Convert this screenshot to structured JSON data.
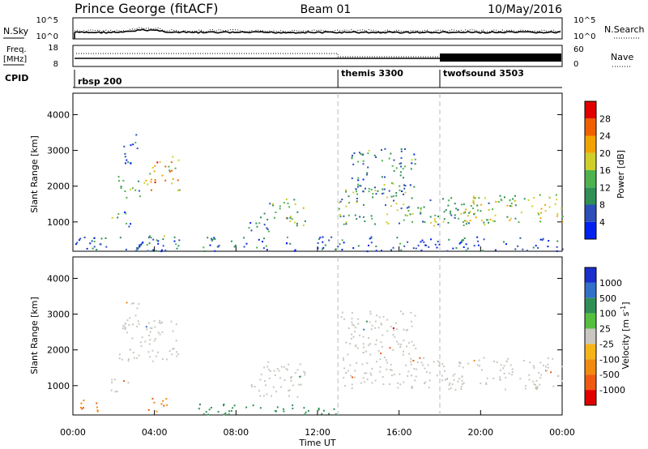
{
  "header": {
    "station": "Prince George (fitACF)",
    "beam": "Beam 01",
    "date": "10/May/2016"
  },
  "left_labels": {
    "nsky": "N.Sky",
    "freq_line1": "Freq.",
    "freq_line2": "[MHz]",
    "cpid": "CPID"
  },
  "right_labels": {
    "nsearch": "N.Search",
    "nave": "Nave"
  },
  "panel_ticks": {
    "noise_left": [
      "10^5",
      "10^0"
    ],
    "noise_right": [
      "10^5",
      "10^0"
    ],
    "freq_left": [
      "18",
      "8"
    ],
    "freq_right": [
      "60",
      "0"
    ]
  },
  "cpid_modes": [
    {
      "label": "rbsp 200",
      "start_hour": 0
    },
    {
      "label": "themis 3300",
      "start_hour": 13
    },
    {
      "label": "twofsound 3503",
      "start_hour": 18
    }
  ],
  "colors": {
    "power_scale": [
      "#0022ee",
      "#2f4fb8",
      "#2f8f55",
      "#4fb24f",
      "#cfcf2a",
      "#f2a300",
      "#f06000",
      "#e00000"
    ],
    "velocity_scale": [
      "#1a2fcc",
      "#3370c8",
      "#2f8f55",
      "#55c040",
      "#c8c8c0",
      "#f5b51a",
      "#f08a10",
      "#f05a10",
      "#e00000"
    ],
    "line": "#000000",
    "dash": "#bbbbbb"
  },
  "chart_data": [
    {
      "type": "heatmap",
      "title": "",
      "xlabel": "Time UT",
      "ylabel": "Slant Range [km]",
      "colorbar_label": "Power [dB]",
      "x_ticks": [
        "00:00",
        "04:00",
        "08:00",
        "12:00",
        "16:00",
        "20:00",
        "00:00"
      ],
      "y_ticks": [
        "1000",
        "2000",
        "3000",
        "4000"
      ],
      "colorbar_ticks": [
        "4",
        "8",
        "12",
        "16",
        "20",
        "24",
        "28"
      ],
      "xlim": [
        0,
        24
      ],
      "ylim": [
        180,
        4600
      ],
      "clim": [
        0,
        32
      ],
      "regions": [
        {
          "t": [
            2.2,
            3.6
          ],
          "r": [
            1700,
            2300
          ],
          "level": 14
        },
        {
          "t": [
            3.6,
            5.2
          ],
          "r": [
            1900,
            2850
          ],
          "level": 22
        },
        {
          "t": [
            2.4,
            3.2
          ],
          "r": [
            2600,
            3500
          ],
          "level": 8
        },
        {
          "t": [
            1.8,
            2.8
          ],
          "r": [
            850,
            1300
          ],
          "level": 10
        },
        {
          "t": [
            3.6,
            4.6
          ],
          "r": [
            300,
            700
          ],
          "level": 12
        },
        {
          "t": [
            8.6,
            9.6
          ],
          "r": [
            700,
            1400
          ],
          "level": 9
        },
        {
          "t": [
            9.6,
            11.4
          ],
          "r": [
            900,
            1700
          ],
          "level": 14
        },
        {
          "t": [
            13.0,
            16.5
          ],
          "r": [
            950,
            2000
          ],
          "level": 12
        },
        {
          "t": [
            13.6,
            16.8
          ],
          "r": [
            1800,
            3100
          ],
          "level": 10
        },
        {
          "t": [
            16.5,
            21.0
          ],
          "r": [
            900,
            1700
          ],
          "level": 13
        },
        {
          "t": [
            19.0,
            24.0
          ],
          "r": [
            1000,
            1800
          ],
          "level": 16
        },
        {
          "t": [
            0.0,
            24.0
          ],
          "r": [
            200,
            600
          ],
          "level": 6
        }
      ]
    },
    {
      "type": "heatmap",
      "title": "",
      "xlabel": "Time UT",
      "ylabel": "Slant Range [km]",
      "colorbar_label": "Velocity [m s^-1]",
      "x_ticks": [
        "00:00",
        "04:00",
        "08:00",
        "12:00",
        "16:00",
        "20:00",
        "00:00"
      ],
      "y_ticks": [
        "1000",
        "2000",
        "3000",
        "4000"
      ],
      "colorbar_ticks": [
        "1000",
        "500",
        "100",
        "25",
        "-25",
        "-100",
        "-500",
        "-1000"
      ],
      "xlim": [
        0,
        24
      ],
      "ylim": [
        180,
        4600
      ],
      "regions": [
        {
          "t": [
            2.2,
            5.2
          ],
          "r": [
            1700,
            2850
          ],
          "velocity": 0
        },
        {
          "t": [
            2.4,
            3.2
          ],
          "r": [
            2600,
            3500
          ],
          "velocity": 0
        },
        {
          "t": [
            1.8,
            2.8
          ],
          "r": [
            850,
            1300
          ],
          "velocity": 0
        },
        {
          "t": [
            3.5,
            4.7
          ],
          "r": [
            300,
            700
          ],
          "velocity": -300
        },
        {
          "t": [
            0.3,
            1.5
          ],
          "r": [
            250,
            650
          ],
          "velocity": -300
        },
        {
          "t": [
            8.6,
            11.4
          ],
          "r": [
            700,
            1700
          ],
          "velocity": 0
        },
        {
          "t": [
            13.0,
            16.8
          ],
          "r": [
            950,
            3100
          ],
          "velocity": 0
        },
        {
          "t": [
            16.5,
            24.0
          ],
          "r": [
            900,
            1800
          ],
          "velocity": 0
        },
        {
          "t": [
            6.0,
            13.0
          ],
          "r": [
            200,
            500
          ],
          "velocity": 80
        }
      ]
    }
  ]
}
